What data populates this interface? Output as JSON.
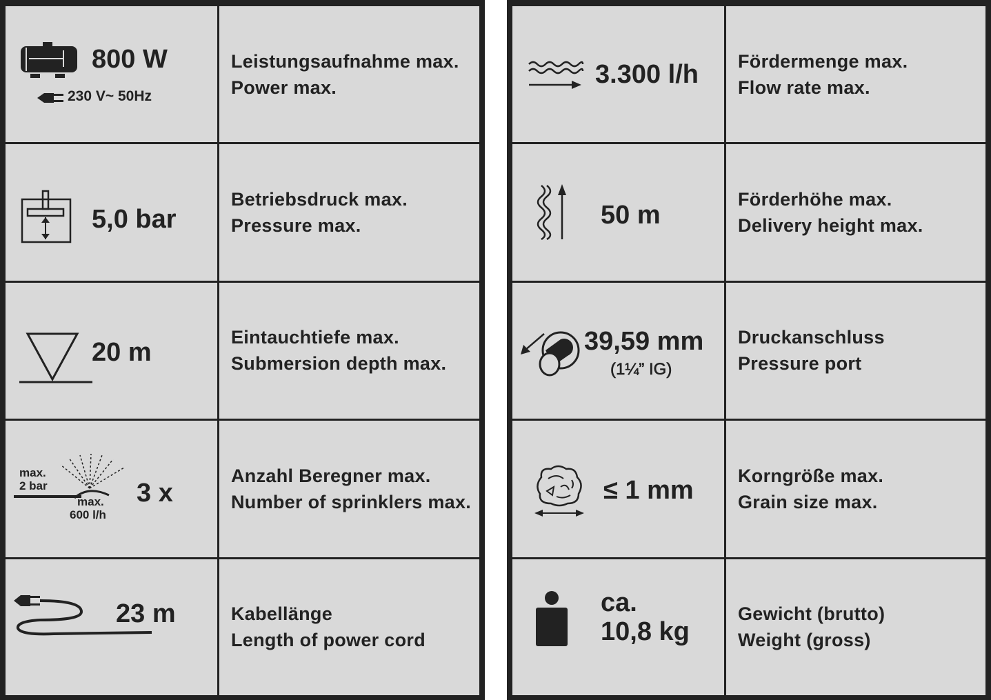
{
  "left": [
    {
      "icon": "motor-icon",
      "value": "800 W",
      "sub": "230 V~ 50Hz",
      "sub_icon": "plug-icon",
      "de": "Leistungsaufnahme max.",
      "en": "Power max."
    },
    {
      "icon": "pressure-gauge-icon",
      "value": "5,0 bar",
      "de": "Betriebsdruck max.",
      "en": "Pressure max."
    },
    {
      "icon": "submersion-depth-icon",
      "value": "20 m",
      "de": "Eintauchtiefe max.",
      "en": "Submersion depth max."
    },
    {
      "icon": "sprinkler-icon",
      "value": "3 x",
      "icon_label_pressure": "max.\n2 bar",
      "icon_label_flow_1": "max.",
      "icon_label_flow_2": "600 l/h",
      "de": "Anzahl Beregner max.",
      "en": "Number of sprinklers max."
    },
    {
      "icon": "power-cord-icon",
      "value": "23 m",
      "de": "Kabellänge",
      "en": "Length of power cord"
    }
  ],
  "right": [
    {
      "icon": "flow-rate-icon",
      "value": "3.300 l/h",
      "de": "Fördermenge max.",
      "en": "Flow rate max."
    },
    {
      "icon": "delivery-height-icon",
      "value": "50 m",
      "de": "Förderhöhe max.",
      "en": "Delivery height max."
    },
    {
      "icon": "pressure-port-icon",
      "value": "39,59 mm",
      "sub": "(1¼” IG)",
      "de": "Druckanschluss",
      "en": "Pressure port"
    },
    {
      "icon": "grain-size-icon",
      "value": "≤ 1 mm",
      "de": "Korngröße max.",
      "en": "Grain size max."
    },
    {
      "icon": "weight-icon",
      "value_line1": "ca.",
      "value": "10,8 kg",
      "de": "Gewicht (brutto)",
      "en": "Weight (gross)"
    }
  ],
  "colors": {
    "background": "#d9d9d9",
    "border": "#222222",
    "text": "#222222"
  }
}
